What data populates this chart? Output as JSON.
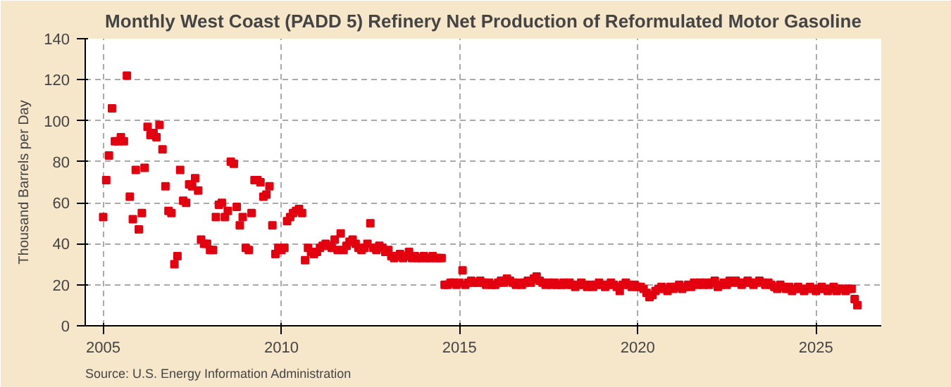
{
  "chart_data": {
    "type": "scatter",
    "title": "Monthly West Coast (PADD 5) Refinery Net Production of Reformulated Motor Gasoline",
    "ylabel": "Thousand Barrels per Day",
    "annotations": [
      "Source: U.S. Energy Information Administration"
    ],
    "series": [
      {
        "color": "#e3000f",
        "x": [
          "2005-01",
          "2005-02",
          "2005-03",
          "2005-04",
          "2005-05",
          "2005-06",
          "2005-07",
          "2005-08",
          "2005-09",
          "2005-10",
          "2005-11",
          "2005-12",
          "2006-01",
          "2006-02",
          "2006-03",
          "2006-04",
          "2006-05",
          "2006-06",
          "2006-07",
          "2006-08",
          "2006-09",
          "2006-10",
          "2006-11",
          "2006-12",
          "2007-01",
          "2007-02",
          "2007-03",
          "2007-04",
          "2007-05",
          "2007-06",
          "2007-07",
          "2007-08",
          "2007-09",
          "2007-10",
          "2007-11",
          "2007-12",
          "2008-01",
          "2008-02",
          "2008-03",
          "2008-04",
          "2008-05",
          "2008-06",
          "2008-07",
          "2008-08",
          "2008-09",
          "2008-10",
          "2008-11",
          "2008-12",
          "2009-01",
          "2009-02",
          "2009-03",
          "2009-04",
          "2009-05",
          "2009-06",
          "2009-07",
          "2009-08",
          "2009-09",
          "2009-10",
          "2009-11",
          "2009-12",
          "2010-01",
          "2010-02",
          "2010-03",
          "2010-04",
          "2010-05",
          "2010-06",
          "2010-07",
          "2010-08",
          "2010-09",
          "2010-10",
          "2010-11",
          "2010-12",
          "2011-01",
          "2011-02",
          "2011-03",
          "2011-04",
          "2011-05",
          "2011-06",
          "2011-07",
          "2011-08",
          "2011-09",
          "2011-10",
          "2011-11",
          "2011-12",
          "2012-01",
          "2012-02",
          "2012-03",
          "2012-04",
          "2012-05",
          "2012-06",
          "2012-07",
          "2012-08",
          "2012-09",
          "2012-10",
          "2012-11",
          "2012-12",
          "2013-01",
          "2013-02",
          "2013-03",
          "2013-04",
          "2013-05",
          "2013-06",
          "2013-07",
          "2013-08",
          "2013-09",
          "2013-10",
          "2013-11",
          "2013-12",
          "2014-01",
          "2014-02",
          "2014-03",
          "2014-04",
          "2014-05",
          "2014-06",
          "2014-07",
          "2014-08",
          "2014-09",
          "2014-10",
          "2014-11",
          "2014-12",
          "2015-01",
          "2015-02",
          "2015-03",
          "2015-04",
          "2015-05",
          "2015-06",
          "2015-07",
          "2015-08",
          "2015-09",
          "2015-10",
          "2015-11",
          "2015-12",
          "2016-01",
          "2016-02",
          "2016-03",
          "2016-04",
          "2016-05",
          "2016-06",
          "2016-07",
          "2016-08",
          "2016-09",
          "2016-10",
          "2016-11",
          "2016-12",
          "2017-01",
          "2017-02",
          "2017-03",
          "2017-04",
          "2017-05",
          "2017-06",
          "2017-07",
          "2017-08",
          "2017-09",
          "2017-10",
          "2017-11",
          "2017-12",
          "2018-01",
          "2018-02",
          "2018-03",
          "2018-04",
          "2018-05",
          "2018-06",
          "2018-07",
          "2018-08",
          "2018-09",
          "2018-10",
          "2018-11",
          "2018-12",
          "2019-01",
          "2019-02",
          "2019-03",
          "2019-04",
          "2019-05",
          "2019-06",
          "2019-07",
          "2019-08",
          "2019-09",
          "2019-10",
          "2019-11",
          "2019-12",
          "2020-01",
          "2020-02",
          "2020-03",
          "2020-04",
          "2020-05",
          "2020-06",
          "2020-07",
          "2020-08",
          "2020-09",
          "2020-10",
          "2020-11",
          "2020-12",
          "2021-01",
          "2021-02",
          "2021-03",
          "2021-04",
          "2021-05",
          "2021-06",
          "2021-07",
          "2021-08",
          "2021-09",
          "2021-10",
          "2021-11",
          "2021-12",
          "2022-01",
          "2022-02",
          "2022-03",
          "2022-04",
          "2022-05",
          "2022-06",
          "2022-07",
          "2022-08",
          "2022-09",
          "2022-10",
          "2022-11",
          "2022-12",
          "2023-01",
          "2023-02",
          "2023-03",
          "2023-04",
          "2023-05",
          "2023-06",
          "2023-07",
          "2023-08",
          "2023-09",
          "2023-10",
          "2023-11",
          "2023-12",
          "2024-01",
          "2024-02",
          "2024-03",
          "2024-04",
          "2024-05",
          "2024-06",
          "2024-07",
          "2024-08",
          "2024-09",
          "2024-10",
          "2024-11",
          "2024-12",
          "2025-01",
          "2025-02",
          "2025-03",
          "2025-04",
          "2025-05",
          "2025-06",
          "2025-07",
          "2025-08",
          "2025-09",
          "2025-10",
          "2025-11",
          "2025-12",
          "2026-01",
          "2026-02",
          "2026-03"
        ],
        "values": [
          53,
          71,
          83,
          106,
          90,
          90,
          92,
          90,
          122,
          63,
          52,
          76,
          47,
          55,
          77,
          97,
          93,
          94,
          92,
          98,
          86,
          68,
          56,
          55,
          30,
          34,
          76,
          61,
          60,
          69,
          68,
          72,
          66,
          42,
          40,
          40,
          37,
          37,
          53,
          59,
          60,
          53,
          56,
          80,
          79,
          58,
          49,
          53,
          38,
          37,
          55,
          71,
          71,
          70,
          63,
          64,
          68,
          49,
          35,
          38,
          37,
          38,
          51,
          53,
          55,
          56,
          57,
          55,
          32,
          38,
          36,
          35,
          36,
          38,
          39,
          40,
          39,
          38,
          42,
          37,
          45,
          37,
          39,
          41,
          42,
          40,
          38,
          37,
          38,
          40,
          50,
          38,
          37,
          39,
          38,
          36,
          37,
          34,
          33,
          34,
          35,
          33,
          34,
          36,
          33,
          34,
          33,
          33,
          34,
          33,
          33,
          34,
          33,
          33,
          33,
          20,
          20,
          21,
          21,
          20,
          21,
          27,
          20,
          21,
          22,
          21,
          21,
          22,
          21,
          20,
          21,
          20,
          20,
          21,
          22,
          21,
          23,
          22,
          21,
          20,
          21,
          20,
          21,
          22,
          21,
          23,
          24,
          22,
          21,
          20,
          21,
          20,
          21,
          20,
          20,
          21,
          20,
          21,
          20,
          19,
          20,
          21,
          20,
          19,
          20,
          19,
          20,
          21,
          20,
          19,
          20,
          21,
          20,
          19,
          17,
          20,
          21,
          20,
          19,
          20,
          19,
          19,
          18,
          16,
          14,
          15,
          17,
          18,
          19,
          18,
          17,
          19,
          18,
          19,
          20,
          18,
          19,
          20,
          19,
          21,
          20,
          21,
          20,
          21,
          20,
          21,
          22,
          19,
          20,
          21,
          20,
          22,
          21,
          22,
          21,
          20,
          21,
          22,
          21,
          20,
          21,
          22,
          21,
          20,
          21,
          20,
          19,
          18,
          20,
          19,
          18,
          19,
          17,
          18,
          19,
          18,
          17,
          18,
          19,
          18,
          17,
          18,
          19,
          18,
          17,
          18,
          19,
          17,
          18,
          18,
          17,
          18,
          18,
          13,
          10
        ]
      }
    ],
    "marker": "square",
    "grid": true,
    "xlim": [
      "2004-07",
      "2026-11"
    ],
    "xticks": [
      "2005",
      "2010",
      "2015",
      "2020",
      "2025"
    ],
    "ylim": [
      0,
      140
    ],
    "yticks": [
      0,
      20,
      40,
      60,
      80,
      100,
      120,
      140
    ]
  }
}
